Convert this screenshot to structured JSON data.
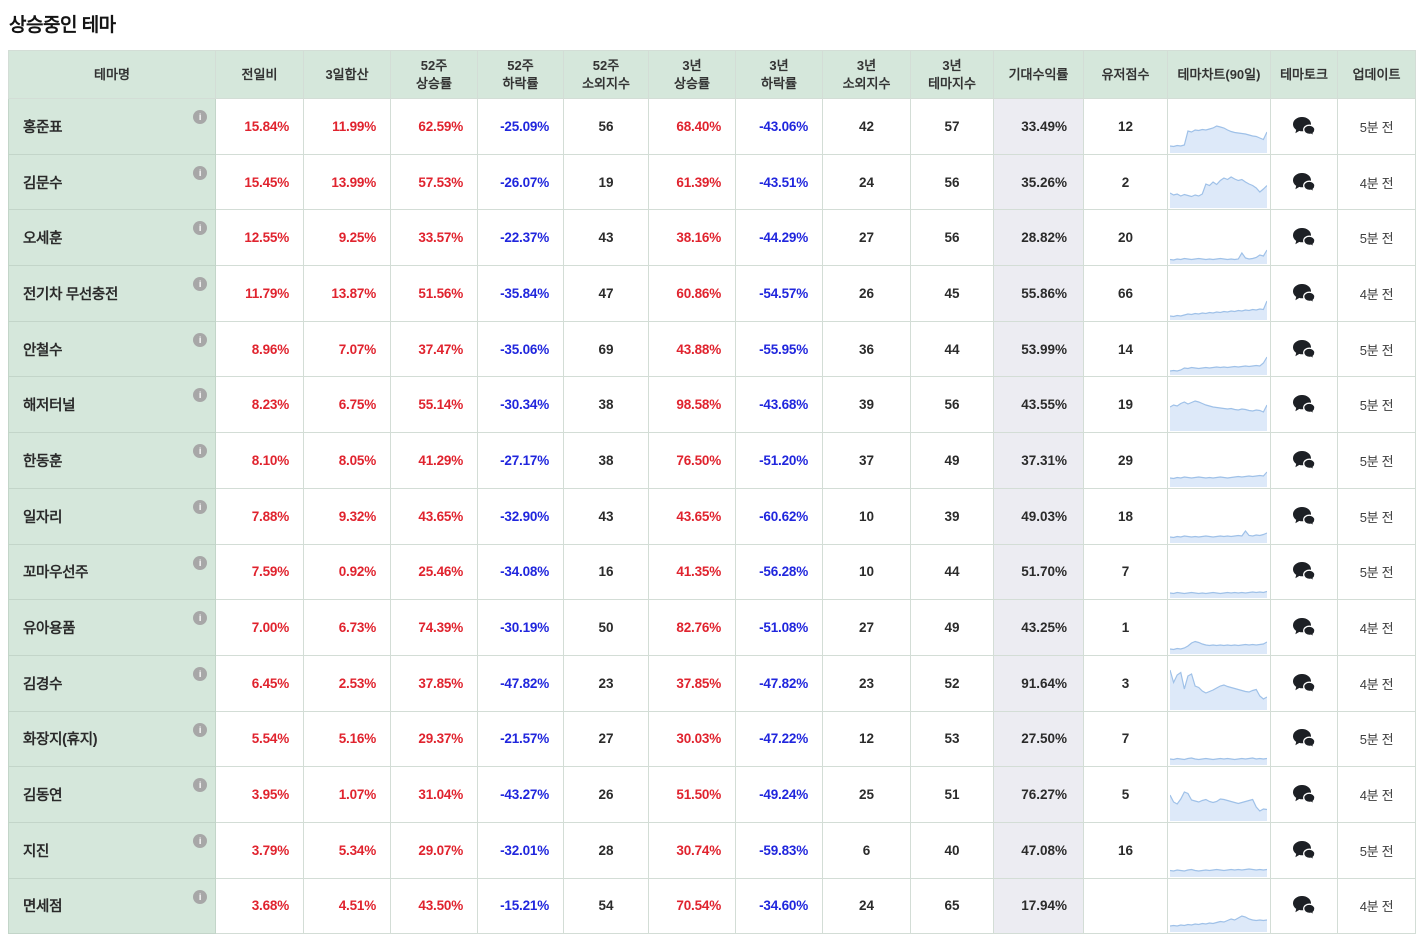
{
  "title": "상승중인 테마",
  "colors": {
    "positive": "#e0232e",
    "negative": "#2026dd",
    "theme_col_bg": "#d5e7db",
    "expected_col_bg": "#ececf2",
    "chart_line": "#9fc1e8",
    "chart_fill": "#dde9f9",
    "talk_icon": "#1d2025",
    "info_icon_bg": "#a7a7a7"
  },
  "icons": {
    "info": "i",
    "talk": "two-speech-bubbles"
  },
  "table": {
    "columns": [
      "테마명",
      "전일비",
      "3일합산",
      "52주\n상승률",
      "52주\n하락률",
      "52주\n소외지수",
      "3년\n상승률",
      "3년\n하락률",
      "3년\n소외지수",
      "3년\n테마지수",
      "기대수익률",
      "유저점수",
      "테마차트(90일)",
      "테마토크",
      "업데이트"
    ],
    "rows": [
      {
        "name": "홍준표",
        "change_1d": "15.84%",
        "sum_3d": "11.99%",
        "rise_52w": "62.59%",
        "fall_52w": "-25.09%",
        "neglect_52w": "56",
        "rise_3y": "68.40%",
        "fall_3y": "-43.06%",
        "neglect_3y": "42",
        "index_3y": "57",
        "expected_return": "33.49%",
        "user_score": "12",
        "update": "5분 전",
        "sparkline": [
          14,
          13,
          15,
          14,
          16,
          44,
          42,
          46,
          45,
          47,
          46,
          48,
          50,
          54,
          52,
          50,
          46,
          43,
          41,
          40,
          39,
          38,
          36,
          34,
          33,
          30,
          27,
          42
        ]
      },
      {
        "name": "김문수",
        "change_1d": "15.45%",
        "sum_3d": "13.99%",
        "rise_52w": "57.53%",
        "fall_52w": "-26.07%",
        "neglect_52w": "19",
        "rise_3y": "61.39%",
        "fall_3y": "-43.51%",
        "neglect_3y": "24",
        "index_3y": "56",
        "expected_return": "35.26%",
        "user_score": "2",
        "update": "4분 전",
        "sparkline": [
          30,
          26,
          28,
          24,
          27,
          25,
          23,
          26,
          24,
          28,
          48,
          45,
          52,
          47,
          55,
          60,
          57,
          62,
          58,
          55,
          57,
          52,
          48,
          45,
          40,
          32,
          38,
          45
        ]
      },
      {
        "name": "오세훈",
        "change_1d": "12.55%",
        "sum_3d": "9.25%",
        "rise_52w": "33.57%",
        "fall_52w": "-22.37%",
        "neglect_52w": "43",
        "rise_3y": "38.16%",
        "fall_3y": "-44.29%",
        "neglect_3y": "27",
        "index_3y": "56",
        "expected_return": "28.82%",
        "user_score": "20",
        "update": "5분 전",
        "sparkline": [
          9,
          8,
          10,
          9,
          11,
          10,
          9,
          10,
          11,
          10,
          9,
          10,
          9,
          10,
          11,
          10,
          9,
          10,
          9,
          10,
          22,
          12,
          10,
          11,
          13,
          18,
          16,
          28
        ]
      },
      {
        "name": "전기차 무선충전",
        "change_1d": "11.79%",
        "sum_3d": "13.87%",
        "rise_52w": "51.56%",
        "fall_52w": "-35.84%",
        "neglect_52w": "47",
        "rise_3y": "60.86%",
        "fall_3y": "-54.57%",
        "neglect_3y": "26",
        "index_3y": "45",
        "expected_return": "55.86%",
        "user_score": "66",
        "update": "4분 전",
        "sparkline": [
          8,
          7,
          9,
          8,
          10,
          12,
          11,
          13,
          12,
          14,
          13,
          15,
          14,
          16,
          15,
          17,
          16,
          18,
          17,
          19,
          18,
          20,
          19,
          21,
          20,
          22,
          21,
          38
        ]
      },
      {
        "name": "안철수",
        "change_1d": "8.96%",
        "sum_3d": "7.07%",
        "rise_52w": "37.47%",
        "fall_52w": "-35.06%",
        "neglect_52w": "69",
        "rise_3y": "43.88%",
        "fall_3y": "-55.95%",
        "neglect_3y": "36",
        "index_3y": "44",
        "expected_return": "53.99%",
        "user_score": "14",
        "update": "5분 전",
        "sparkline": [
          8,
          9,
          8,
          10,
          14,
          13,
          15,
          14,
          13,
          14,
          15,
          14,
          15,
          16,
          15,
          16,
          15,
          16,
          17,
          16,
          17,
          18,
          17,
          18,
          19,
          18,
          24,
          36
        ]
      },
      {
        "name": "해저터널",
        "change_1d": "8.23%",
        "sum_3d": "6.75%",
        "rise_52w": "55.14%",
        "fall_52w": "-30.34%",
        "neglect_52w": "38",
        "rise_3y": "98.58%",
        "fall_3y": "-43.68%",
        "neglect_3y": "39",
        "index_3y": "56",
        "expected_return": "43.55%",
        "user_score": "19",
        "update": "5분 전",
        "sparkline": [
          48,
          52,
          50,
          55,
          58,
          54,
          57,
          60,
          58,
          55,
          52,
          50,
          48,
          47,
          46,
          45,
          44,
          45,
          43,
          42,
          44,
          43,
          41,
          40,
          42,
          41,
          38,
          52
        ]
      },
      {
        "name": "한동훈",
        "change_1d": "8.10%",
        "sum_3d": "8.05%",
        "rise_52w": "41.29%",
        "fall_52w": "-27.17%",
        "neglect_52w": "38",
        "rise_3y": "76.50%",
        "fall_3y": "-51.20%",
        "neglect_3y": "37",
        "index_3y": "49",
        "expected_return": "37.31%",
        "user_score": "29",
        "update": "5분 전",
        "sparkline": [
          18,
          17,
          19,
          18,
          20,
          19,
          18,
          19,
          20,
          19,
          18,
          19,
          18,
          19,
          20,
          19,
          18,
          19,
          20,
          21,
          20,
          21,
          22,
          21,
          22,
          23,
          22,
          30
        ]
      },
      {
        "name": "일자리",
        "change_1d": "7.88%",
        "sum_3d": "9.32%",
        "rise_52w": "43.65%",
        "fall_52w": "-32.90%",
        "neglect_52w": "43",
        "rise_3y": "43.65%",
        "fall_3y": "-60.62%",
        "neglect_3y": "10",
        "index_3y": "39",
        "expected_return": "49.03%",
        "user_score": "18",
        "update": "5분 전",
        "sparkline": [
          12,
          11,
          13,
          12,
          14,
          13,
          12,
          13,
          12,
          13,
          14,
          13,
          12,
          13,
          14,
          13,
          14,
          13,
          14,
          15,
          14,
          24,
          15,
          14,
          16,
          15,
          17,
          20
        ]
      },
      {
        "name": "꼬마우선주",
        "change_1d": "7.59%",
        "sum_3d": "0.92%",
        "rise_52w": "25.46%",
        "fall_52w": "-34.08%",
        "neglect_52w": "16",
        "rise_3y": "41.35%",
        "fall_3y": "-56.28%",
        "neglect_3y": "10",
        "index_3y": "44",
        "expected_return": "51.70%",
        "user_score": "7",
        "update": "5분 전",
        "sparkline": [
          10,
          9,
          11,
          10,
          9,
          10,
          11,
          10,
          9,
          10,
          9,
          10,
          11,
          10,
          9,
          10,
          11,
          10,
          11,
          10,
          11,
          10,
          11,
          12,
          11,
          12,
          11,
          13
        ]
      },
      {
        "name": "유아용품",
        "change_1d": "7.00%",
        "sum_3d": "6.73%",
        "rise_52w": "74.39%",
        "fall_52w": "-30.19%",
        "neglect_52w": "50",
        "rise_3y": "82.76%",
        "fall_3y": "-51.08%",
        "neglect_3y": "27",
        "index_3y": "49",
        "expected_return": "43.25%",
        "user_score": "1",
        "update": "4분 전",
        "sparkline": [
          10,
          9,
          11,
          10,
          12,
          16,
          22,
          25,
          23,
          20,
          18,
          17,
          18,
          17,
          18,
          17,
          18,
          17,
          18,
          17,
          18,
          19,
          18,
          19,
          18,
          19,
          20,
          24
        ]
      },
      {
        "name": "김경수",
        "change_1d": "6.45%",
        "sum_3d": "2.53%",
        "rise_52w": "37.85%",
        "fall_52w": "-47.82%",
        "neglect_52w": "23",
        "rise_3y": "37.85%",
        "fall_3y": "-47.82%",
        "neglect_3y": "23",
        "index_3y": "52",
        "expected_return": "91.64%",
        "user_score": "3",
        "update": "4분 전",
        "sparkline": [
          80,
          55,
          70,
          75,
          42,
          68,
          72,
          48,
          45,
          38,
          34,
          37,
          40,
          44,
          48,
          50,
          47,
          45,
          43,
          41,
          39,
          37,
          36,
          39,
          41,
          28,
          22,
          26
        ]
      },
      {
        "name": "화장지(휴지)",
        "change_1d": "5.54%",
        "sum_3d": "5.16%",
        "rise_52w": "29.37%",
        "fall_52w": "-21.57%",
        "neglect_52w": "27",
        "rise_3y": "30.03%",
        "fall_3y": "-47.22%",
        "neglect_3y": "12",
        "index_3y": "53",
        "expected_return": "27.50%",
        "user_score": "7",
        "update": "5분 전",
        "sparkline": [
          12,
          11,
          13,
          12,
          11,
          13,
          14,
          12,
          11,
          12,
          13,
          12,
          11,
          12,
          13,
          12,
          13,
          12,
          11,
          12,
          13,
          12,
          13,
          14,
          12,
          13,
          12,
          13
        ]
      },
      {
        "name": "김동연",
        "change_1d": "3.95%",
        "sum_3d": "1.07%",
        "rise_52w": "31.04%",
        "fall_52w": "-43.27%",
        "neglect_52w": "26",
        "rise_3y": "51.50%",
        "fall_3y": "-49.24%",
        "neglect_3y": "25",
        "index_3y": "51",
        "expected_return": "76.27%",
        "user_score": "5",
        "update": "4분 전",
        "sparkline": [
          52,
          38,
          34,
          44,
          58,
          55,
          42,
          40,
          38,
          41,
          43,
          39,
          37,
          39,
          44,
          43,
          41,
          39,
          37,
          35,
          37,
          39,
          41,
          43,
          28,
          20,
          24,
          23
        ]
      },
      {
        "name": "지진",
        "change_1d": "3.79%",
        "sum_3d": "5.34%",
        "rise_52w": "29.07%",
        "fall_52w": "-32.01%",
        "neglect_52w": "28",
        "rise_3y": "30.74%",
        "fall_3y": "-59.83%",
        "neglect_3y": "6",
        "index_3y": "40",
        "expected_return": "47.08%",
        "user_score": "16",
        "update": "5분 전",
        "sparkline": [
          13,
          12,
          14,
          13,
          12,
          14,
          15,
          13,
          12,
          13,
          14,
          13,
          14,
          15,
          14,
          13,
          14,
          15,
          14,
          15,
          14,
          15,
          16,
          15,
          14,
          15,
          14,
          15
        ]
      },
      {
        "name": "면세점",
        "change_1d": "3.68%",
        "sum_3d": "4.51%",
        "rise_52w": "43.50%",
        "fall_52w": "-15.21%",
        "neglect_52w": "54",
        "rise_3y": "70.54%",
        "fall_3y": "-34.60%",
        "neglect_3y": "24",
        "index_3y": "65",
        "expected_return": "17.94%",
        "user_score": "",
        "update": "4분 전",
        "sparkline": [
          12,
          13,
          12,
          14,
          13,
          15,
          14,
          16,
          15,
          17,
          16,
          18,
          17,
          19,
          21,
          20,
          23,
          26,
          24,
          28,
          32,
          30,
          26,
          24,
          23,
          24,
          23,
          24
        ]
      }
    ]
  }
}
